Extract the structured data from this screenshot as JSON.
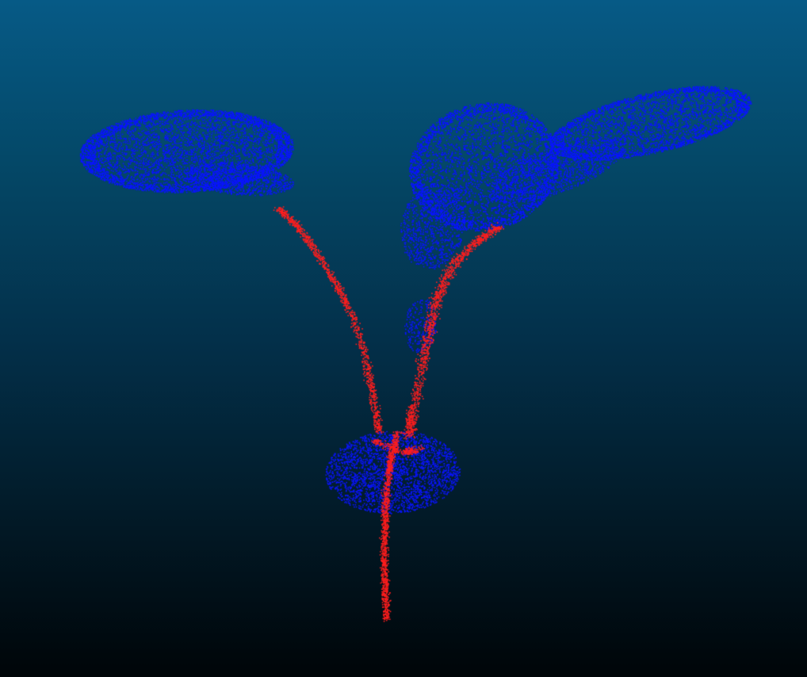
{
  "viewer": {
    "background_top": "#065a86",
    "background_bottom": "#000508"
  },
  "point_cloud": {
    "classes": [
      {
        "name": "leaf",
        "color": "#0a14ff"
      },
      {
        "name": "stem",
        "color": "#ff1e1e"
      }
    ]
  }
}
